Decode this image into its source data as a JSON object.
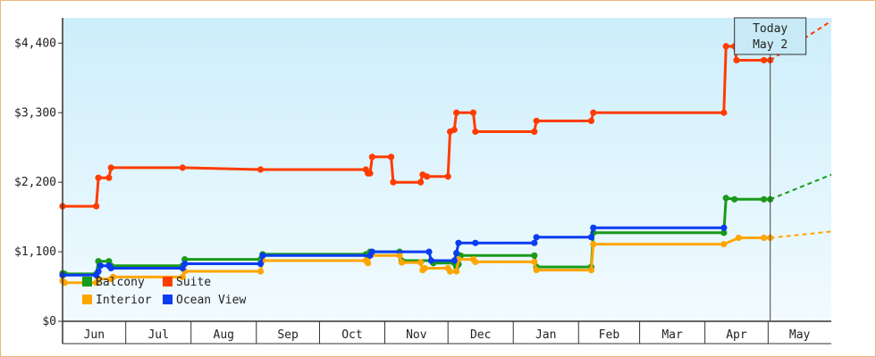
{
  "chart_data": {
    "type": "line",
    "step": true,
    "x_unit": "date",
    "x_range": [
      "2023-06-01",
      "2024-05-31"
    ],
    "month_ticks": [
      {
        "label": "Jun",
        "date": "2023-06-01"
      },
      {
        "label": "Jul",
        "date": "2023-07-01"
      },
      {
        "label": "Aug",
        "date": "2023-08-01"
      },
      {
        "label": "Sep",
        "date": "2023-09-01"
      },
      {
        "label": "Oct",
        "date": "2023-10-01"
      },
      {
        "label": "Nov",
        "date": "2023-11-01"
      },
      {
        "label": "Dec",
        "date": "2023-12-01"
      },
      {
        "label": "Jan",
        "date": "2024-01-01"
      },
      {
        "label": "Feb",
        "date": "2024-02-01"
      },
      {
        "label": "Mar",
        "date": "2024-03-01"
      },
      {
        "label": "Apr",
        "date": "2024-04-01"
      },
      {
        "label": "May",
        "date": "2024-05-01"
      }
    ],
    "ylim": [
      0,
      4800
    ],
    "y_ticks": [
      {
        "value": 0,
        "label": "$0"
      },
      {
        "value": 1100,
        "label": "$1,100"
      },
      {
        "value": 2200,
        "label": "$2,200"
      },
      {
        "value": 3300,
        "label": "$3,300"
      },
      {
        "value": 4400,
        "label": "$4,400"
      }
    ],
    "today": {
      "line1": "Today",
      "line2": "May 2",
      "date": "2024-05-02"
    },
    "projection_end": "2024-05-31",
    "legend": {
      "placement": "bottom-left"
    },
    "series": [
      {
        "name": "Balcony",
        "color": "#1a9a1a",
        "points": [
          [
            "2023-06-01",
            760
          ],
          [
            "2023-06-02",
            750
          ],
          [
            "2023-06-17",
            750
          ],
          [
            "2023-06-18",
            950
          ],
          [
            "2023-06-23",
            950
          ],
          [
            "2023-06-24",
            880
          ],
          [
            "2023-07-28",
            880
          ],
          [
            "2023-07-29",
            980
          ],
          [
            "2023-09-03",
            980
          ],
          [
            "2023-09-04",
            1060
          ],
          [
            "2023-10-23",
            1060
          ],
          [
            "2023-10-24",
            1020
          ],
          [
            "2023-10-25",
            1100
          ],
          [
            "2023-11-08",
            1100
          ],
          [
            "2023-11-09",
            960
          ],
          [
            "2023-11-23",
            960
          ],
          [
            "2023-11-24",
            920
          ],
          [
            "2023-12-04",
            920
          ],
          [
            "2023-12-05",
            860
          ],
          [
            "2023-12-06",
            900
          ],
          [
            "2023-12-07",
            1040
          ],
          [
            "2024-01-11",
            1040
          ],
          [
            "2024-01-12",
            860
          ],
          [
            "2024-02-07",
            860
          ],
          [
            "2024-02-08",
            1400
          ],
          [
            "2024-04-10",
            1400
          ],
          [
            "2024-04-11",
            1950
          ],
          [
            "2024-04-15",
            1930
          ],
          [
            "2024-04-29",
            1930
          ],
          [
            "2024-05-02",
            1930
          ]
        ],
        "projection": [
          [
            "2024-05-02",
            1930
          ],
          [
            "2024-05-31",
            2320
          ]
        ]
      },
      {
        "name": "Suite",
        "color": "#ff3c00",
        "points": [
          [
            "2023-06-01",
            1820
          ],
          [
            "2023-06-17",
            1820
          ],
          [
            "2023-06-18",
            2270
          ],
          [
            "2023-06-23",
            2270
          ],
          [
            "2023-06-24",
            2430
          ],
          [
            "2023-07-28",
            2430
          ],
          [
            "2023-09-03",
            2400
          ],
          [
            "2023-10-23",
            2400
          ],
          [
            "2023-10-24",
            2340
          ],
          [
            "2023-10-25",
            2340
          ],
          [
            "2023-10-26",
            2600
          ],
          [
            "2023-11-04",
            2600
          ],
          [
            "2023-11-05",
            2200
          ],
          [
            "2023-11-18",
            2200
          ],
          [
            "2023-11-19",
            2320
          ],
          [
            "2023-11-21",
            2290
          ],
          [
            "2023-12-01",
            2290
          ],
          [
            "2023-12-02",
            3000
          ],
          [
            "2023-12-04",
            3030
          ],
          [
            "2023-12-05",
            3300
          ],
          [
            "2023-12-13",
            3300
          ],
          [
            "2023-12-14",
            3000
          ],
          [
            "2024-01-11",
            3000
          ],
          [
            "2024-01-12",
            3170
          ],
          [
            "2024-02-07",
            3170
          ],
          [
            "2024-02-08",
            3300
          ],
          [
            "2024-04-10",
            3300
          ],
          [
            "2024-04-11",
            4350
          ],
          [
            "2024-04-15",
            4350
          ],
          [
            "2024-04-16",
            4130
          ],
          [
            "2024-04-29",
            4130
          ],
          [
            "2024-05-02",
            4130
          ]
        ],
        "projection": [
          [
            "2024-05-02",
            4130
          ],
          [
            "2024-05-31",
            4750
          ]
        ]
      },
      {
        "name": "Interior",
        "color": "#ffa500",
        "points": [
          [
            "2023-06-01",
            640
          ],
          [
            "2023-06-02",
            610
          ],
          [
            "2023-06-17",
            610
          ],
          [
            "2023-06-18",
            670
          ],
          [
            "2023-06-24",
            670
          ],
          [
            "2023-06-25",
            700
          ],
          [
            "2023-07-28",
            700
          ],
          [
            "2023-07-29",
            790
          ],
          [
            "2023-09-03",
            790
          ],
          [
            "2023-09-04",
            960
          ],
          [
            "2023-10-23",
            960
          ],
          [
            "2023-10-24",
            920
          ],
          [
            "2023-10-25",
            1040
          ],
          [
            "2023-11-08",
            1040
          ],
          [
            "2023-11-09",
            930
          ],
          [
            "2023-11-18",
            930
          ],
          [
            "2023-11-19",
            810
          ],
          [
            "2023-11-20",
            840
          ],
          [
            "2023-12-01",
            840
          ],
          [
            "2023-12-02",
            790
          ],
          [
            "2023-12-05",
            790
          ],
          [
            "2023-12-06",
            980
          ],
          [
            "2023-12-13",
            980
          ],
          [
            "2023-12-14",
            940
          ],
          [
            "2024-01-11",
            940
          ],
          [
            "2024-01-12",
            810
          ],
          [
            "2024-02-07",
            810
          ],
          [
            "2024-02-08",
            1220
          ],
          [
            "2024-04-10",
            1220
          ],
          [
            "2024-04-17",
            1320
          ],
          [
            "2024-04-29",
            1320
          ],
          [
            "2024-05-02",
            1320
          ]
        ],
        "projection": [
          [
            "2024-05-02",
            1320
          ],
          [
            "2024-05-31",
            1420
          ]
        ]
      },
      {
        "name": "Ocean View",
        "color": "#0a3cf0",
        "points": [
          [
            "2023-06-01",
            730
          ],
          [
            "2023-06-17",
            730
          ],
          [
            "2023-06-18",
            790
          ],
          [
            "2023-06-19",
            880
          ],
          [
            "2023-06-23",
            880
          ],
          [
            "2023-06-24",
            840
          ],
          [
            "2023-07-28",
            840
          ],
          [
            "2023-07-29",
            910
          ],
          [
            "2023-09-03",
            910
          ],
          [
            "2023-09-04",
            1040
          ],
          [
            "2023-10-25",
            1040
          ],
          [
            "2023-10-26",
            1100
          ],
          [
            "2023-11-22",
            1100
          ],
          [
            "2023-11-23",
            960
          ],
          [
            "2023-12-04",
            960
          ],
          [
            "2023-12-05",
            1080
          ],
          [
            "2023-12-06",
            1240
          ],
          [
            "2023-12-14",
            1240
          ],
          [
            "2024-01-11",
            1240
          ],
          [
            "2024-01-12",
            1330
          ],
          [
            "2024-02-07",
            1330
          ],
          [
            "2024-02-08",
            1480
          ],
          [
            "2024-04-10",
            1480
          ]
        ],
        "projection": []
      }
    ]
  }
}
